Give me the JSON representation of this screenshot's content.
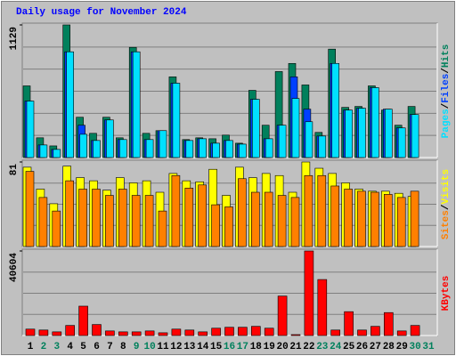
{
  "chart_data": {
    "type": "bar",
    "title": "Daily usage for November 2024",
    "title_color": "#0000ff",
    "legend_separator": "/",
    "categories": [
      "1",
      "2",
      "3",
      "4",
      "5",
      "6",
      "7",
      "8",
      "9",
      "10",
      "11",
      "12",
      "13",
      "14",
      "15",
      "16",
      "17",
      "18",
      "19",
      "20",
      "21",
      "22",
      "23",
      "24",
      "25",
      "26",
      "27",
      "28",
      "29",
      "30",
      "31"
    ],
    "category_colors": [
      "#000000",
      "#00805c",
      "#00805c",
      "#000000",
      "#000000",
      "#000000",
      "#000000",
      "#000000",
      "#00805c",
      "#00805c",
      "#000000",
      "#000000",
      "#000000",
      "#000000",
      "#000000",
      "#00805c",
      "#00805c",
      "#000000",
      "#000000",
      "#000000",
      "#000000",
      "#000000",
      "#00805c",
      "#00805c",
      "#000000",
      "#000000",
      "#000000",
      "#000000",
      "#000000",
      "#00805c",
      "#00805c"
    ],
    "panels": [
      {
        "ylim": [
          0,
          1129
        ],
        "yticks": [
          1129
        ],
        "series": [
          {
            "name": "Hits",
            "color": "#00805c",
            "values": [
              610,
              168,
              99,
              1129,
              343,
              206,
              343,
              168,
              938,
              206,
              229,
              687,
              153,
              168,
              160,
              191,
              122,
              572,
              275,
              732,
              801,
              618,
              214,
              923,
              427,
              435,
              610,
              404,
              275,
              435,
              null
            ]
          },
          {
            "name": "Files",
            "color": "#0040ff",
            "values": [
              481,
              107,
              69,
              900,
              275,
              145,
              320,
              153,
              900,
              153,
              229,
              633,
              145,
              160,
              122,
              145,
              114,
              496,
              160,
              275,
              687,
              412,
              183,
              801,
              404,
              420,
              595,
              412,
              252,
              366,
              null
            ]
          },
          {
            "name": "Pages",
            "color": "#00e0ff",
            "values": [
              481,
              107,
              69,
              900,
              198,
              145,
              320,
              153,
              900,
              153,
              229,
              633,
              145,
              160,
              122,
              145,
              114,
              496,
              160,
              275,
              503,
              305,
              183,
              801,
              404,
              420,
              595,
              412,
              252,
              366,
              null
            ]
          }
        ]
      },
      {
        "ylim": [
          0,
          81
        ],
        "yticks": [
          81
        ],
        "series": [
          {
            "name": "Visits",
            "color": "#ffff00",
            "values": [
              76,
              55,
              41,
              77,
              66,
              63,
              54,
              66,
              61,
              63,
              52,
              70,
              63,
              62,
              74,
              49,
              76,
              66,
              70,
              68,
              52,
              81,
              75,
              70,
              61,
              55,
              53,
              53,
              51,
              48,
              null
            ]
          },
          {
            "name": "Sites",
            "color": "#ff8000",
            "values": [
              72,
              47,
              34,
              63,
              55,
              55,
              49,
              55,
              49,
              49,
              34,
              68,
              56,
              59,
              40,
              38,
              65,
              52,
              52,
              49,
              47,
              68,
              68,
              58,
              55,
              53,
              52,
              50,
              47,
              53,
              null
            ]
          }
        ]
      },
      {
        "ylim": [
          0,
          40604
        ],
        "yticks": [
          40604
        ],
        "series": [
          {
            "name": "KBytes",
            "color": "#ff0000",
            "values": [
              3087,
              2646,
              1764,
              4851,
              14112,
              5292,
              2205,
              1764,
              1764,
              2205,
              1323,
              3087,
              2646,
              1764,
              3528,
              3969,
              3969,
              4410,
              3528,
              18963,
              441,
              40604,
              26901,
              2646,
              11466,
              2646,
              4410,
              11025,
              2205,
              4851,
              null
            ]
          }
        ]
      }
    ]
  }
}
